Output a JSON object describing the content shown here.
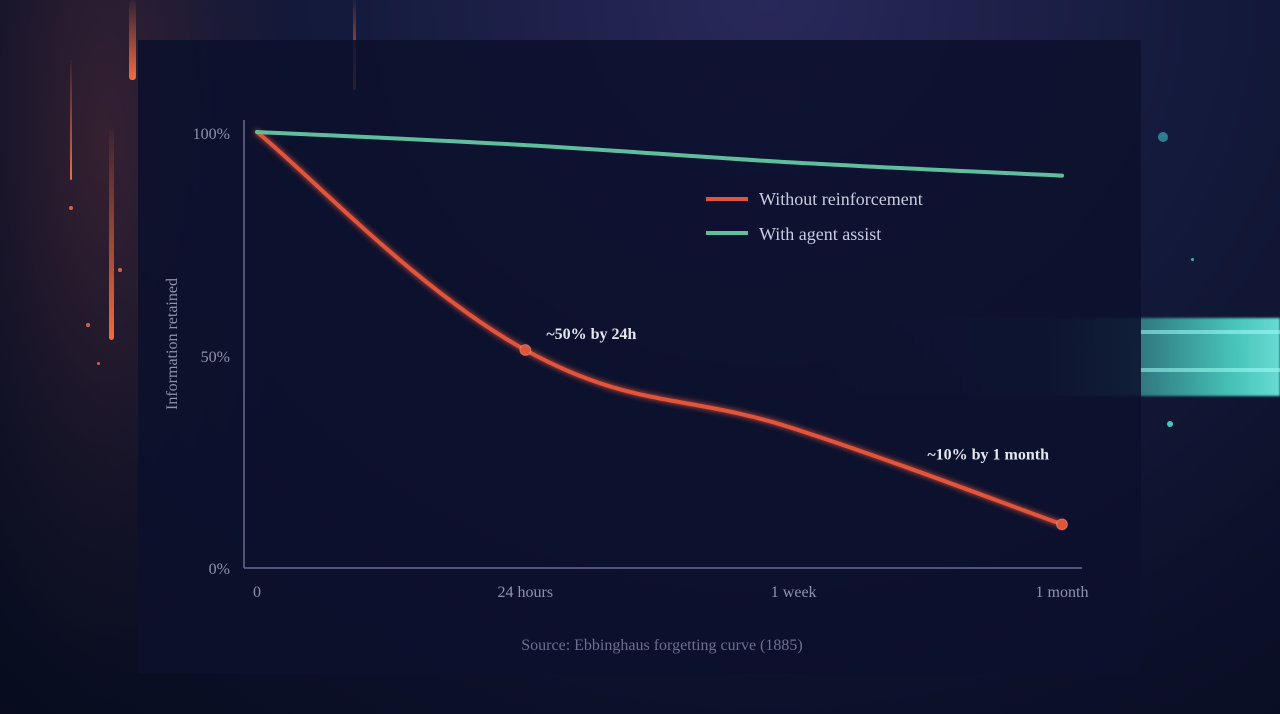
{
  "chart_data": {
    "type": "line",
    "title": "",
    "xlabel": "",
    "ylabel": "Information retained",
    "categories": [
      "0",
      "24 hours",
      "1 week",
      "1 month"
    ],
    "ylim": [
      0,
      100
    ],
    "yticks": [
      "0%",
      "50%",
      "100%"
    ],
    "series": [
      {
        "name": "Without reinforcement",
        "color": "#e2543a",
        "values": [
          100,
          50,
          32,
          10
        ],
        "markers": [
          1,
          3
        ]
      },
      {
        "name": "With agent assist",
        "color": "#5fbf9c",
        "values": [
          100,
          97,
          93,
          90
        ],
        "markers": []
      }
    ],
    "annotations": [
      {
        "series": 0,
        "point": 1,
        "text": "~50% by 24h"
      },
      {
        "series": 0,
        "point": 3,
        "text": "~10% by 1 month"
      }
    ],
    "legend": "upper-right",
    "source": "Source: Ebbinghaus forgetting curve (1885)"
  }
}
